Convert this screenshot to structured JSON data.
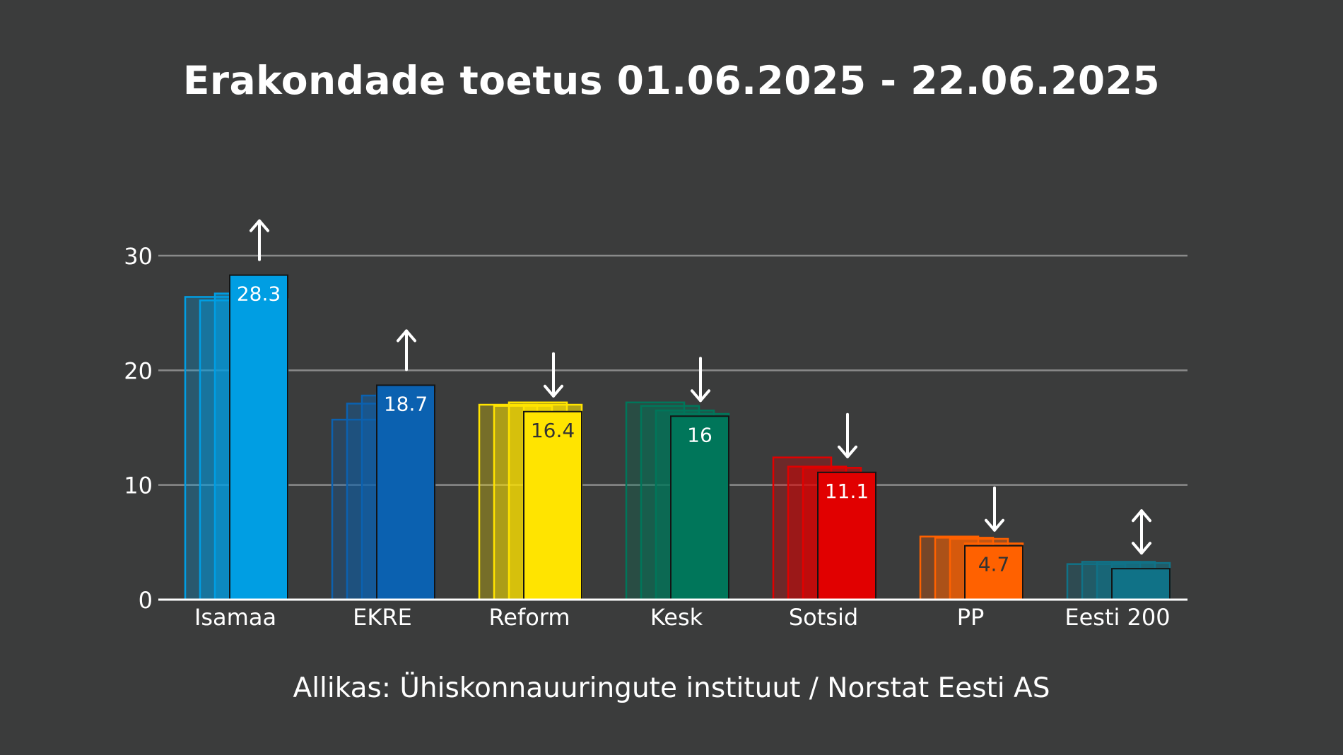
{
  "chart_data": {
    "type": "bar",
    "title": "Erakondade toetus 01.06.2025 - 22.06.2025",
    "source": "Allikas: Ühiskonnauuringute instituut / Norstat Eesti AS",
    "xlabel": "",
    "ylabel": "",
    "ylim": [
      0,
      30
    ],
    "yticks": [
      0,
      10,
      20,
      30
    ],
    "grid": true,
    "legend": "none",
    "categories": [
      "Isamaa",
      "EKRE",
      "Reform",
      "Kesk",
      "Sotsid",
      "PP",
      "Eesti 200"
    ],
    "values": [
      "28.3",
      "18.7",
      "16.4",
      "16",
      "11.1",
      "4.7",
      ""
    ],
    "numeric_values": [
      28.3,
      18.7,
      16.4,
      16.0,
      11.1,
      4.7,
      2.7
    ],
    "previous_values": [
      [
        26.4,
        26.1,
        26.7,
        26.2
      ],
      [
        15.7,
        17.1,
        17.8,
        18.0
      ],
      [
        17.0,
        16.9,
        17.2,
        17.0
      ],
      [
        17.2,
        16.9,
        16.5,
        16.2
      ],
      [
        12.4,
        11.6,
        11.5,
        11.0
      ],
      [
        5.5,
        5.4,
        5.3,
        4.9
      ],
      [
        3.1,
        3.3,
        3.3,
        3.2
      ]
    ],
    "trend": [
      "up",
      "up",
      "down",
      "down",
      "down",
      "down",
      "both"
    ],
    "colors": [
      "#009ee3",
      "#0b61b0",
      "#ffe400",
      "#00765a",
      "#e10000",
      "#ff6100",
      "#107287"
    ],
    "label_colors": [
      "#ffffff",
      "#ffffff",
      "#333333",
      "#ffffff",
      "#ffffff",
      "#333333",
      "#ffffff"
    ]
  }
}
